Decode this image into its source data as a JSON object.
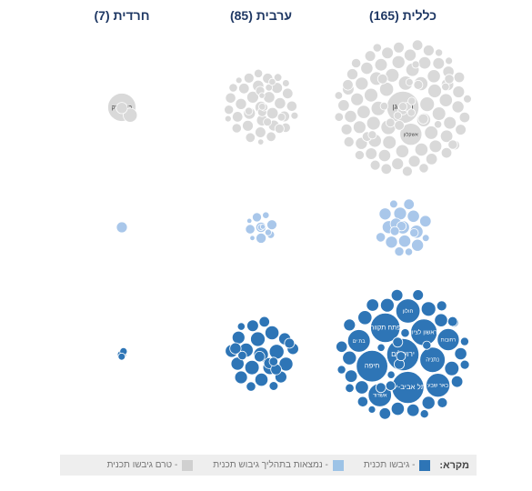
{
  "columns": [
    {
      "id": "general",
      "label": "כללית (165)"
    },
    {
      "id": "arab",
      "label": "ערבית (85)"
    },
    {
      "id": "haredi",
      "label": "חרדית (7)"
    }
  ],
  "legend": {
    "title": "מקרא:",
    "items": [
      {
        "label": "- גיבשו תכנית",
        "color": "#2e75b6"
      },
      {
        "label": "- נמצאות בתהליך גיבוש תכנית",
        "color": "#9dc3e6"
      },
      {
        "label": "- טרם גיבשו תכנית",
        "color": "#d0d0d0"
      }
    ]
  },
  "chart_data": {
    "type": "bubble-grid",
    "rows": [
      "טרם גיבשו תכנית",
      "נמצאות בתהליך גיבוש תכנית",
      "גיבשו תכנית"
    ],
    "columns": [
      "כללית",
      "ערבית",
      "חרדית"
    ],
    "counts": {
      "general": {
        "not_started": 95,
        "in_process": 20,
        "completed": 50
      },
      "arab": {
        "not_started": 45,
        "in_process": 12,
        "completed": 28
      },
      "haredi": {
        "not_started": 3,
        "in_process": 1,
        "completed": 3
      }
    },
    "labels": {
      "general_not_started": [
        "רמת גן",
        "אשקלון"
      ],
      "haredi_not_started": [
        "בני ברק"
      ],
      "general_completed": [
        "ירושלים",
        "תל אביב-יפו",
        "חיפה",
        "פתח תקווה",
        "ראשון לציון",
        "נתניה",
        "חולון",
        "באר שבע",
        "אשדוד",
        "בת ים",
        "רחובות"
      ]
    }
  }
}
